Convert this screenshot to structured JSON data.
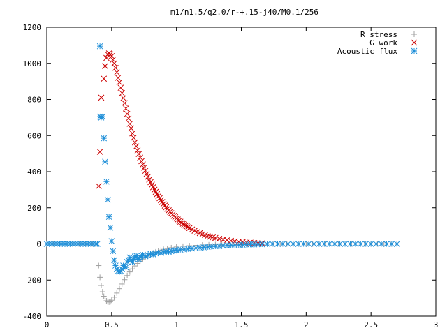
{
  "chart_data": {
    "type": "scatter",
    "title": "m1/n1.5/q2.0/r-+.15-j40/M0.1/256",
    "xlabel": "",
    "ylabel": "",
    "xlim": [
      0,
      3
    ],
    "ylim": [
      -400,
      1200
    ],
    "x_ticks": [
      "0",
      "0.5",
      "1",
      "1.5",
      "2",
      "2.5",
      "3"
    ],
    "y_ticks": [
      "-400",
      "-200",
      "0",
      "200",
      "400",
      "600",
      "800",
      "1000",
      "1200"
    ],
    "grid": false,
    "legend_position": "top-right",
    "series": [
      {
        "name": "R stress",
        "marker": "plus",
        "color": "#a0a0a0",
        "points": [
          [
            0.0,
            0
          ],
          [
            0.05,
            0
          ],
          [
            0.1,
            0
          ],
          [
            0.15,
            0
          ],
          [
            0.2,
            0
          ],
          [
            0.25,
            0
          ],
          [
            0.3,
            0
          ],
          [
            0.35,
            0
          ],
          [
            0.39,
            0
          ],
          [
            0.4,
            -120
          ],
          [
            0.41,
            -185
          ],
          [
            0.42,
            -230
          ],
          [
            0.43,
            -265
          ],
          [
            0.44,
            -290
          ],
          [
            0.45,
            -305
          ],
          [
            0.46,
            -315
          ],
          [
            0.47,
            -320
          ],
          [
            0.48,
            -322
          ],
          [
            0.49,
            -320
          ],
          [
            0.5,
            -312
          ],
          [
            0.52,
            -295
          ],
          [
            0.54,
            -272
          ],
          [
            0.56,
            -248
          ],
          [
            0.58,
            -222
          ],
          [
            0.6,
            -198
          ],
          [
            0.62,
            -175
          ],
          [
            0.64,
            -155
          ],
          [
            0.66,
            -138
          ],
          [
            0.68,
            -122
          ],
          [
            0.7,
            -108
          ],
          [
            0.72,
            -95
          ],
          [
            0.74,
            -84
          ],
          [
            0.76,
            -74
          ],
          [
            0.78,
            -65
          ],
          [
            0.8,
            -57
          ],
          [
            0.82,
            -50
          ],
          [
            0.84,
            -44
          ],
          [
            0.86,
            -39
          ],
          [
            0.88,
            -34
          ],
          [
            0.9,
            -30
          ],
          [
            0.93,
            -25
          ],
          [
            0.96,
            -21
          ],
          [
            1.0,
            -17
          ],
          [
            1.05,
            -13
          ],
          [
            1.1,
            -10
          ],
          [
            1.15,
            -8
          ],
          [
            1.2,
            -6
          ],
          [
            1.25,
            -5
          ],
          [
            1.3,
            -4
          ],
          [
            1.35,
            -3
          ],
          [
            1.4,
            -2
          ],
          [
            1.45,
            -2
          ],
          [
            1.5,
            -1
          ],
          [
            1.55,
            -1
          ],
          [
            1.6,
            -1
          ],
          [
            1.65,
            0
          ],
          [
            1.7,
            0
          ],
          [
            1.75,
            0
          ],
          [
            1.8,
            0
          ],
          [
            1.85,
            0
          ],
          [
            1.9,
            0
          ],
          [
            1.95,
            0
          ],
          [
            2.0,
            0
          ],
          [
            2.05,
            0
          ],
          [
            2.1,
            0
          ],
          [
            2.15,
            0
          ],
          [
            2.2,
            0
          ],
          [
            2.25,
            0
          ],
          [
            2.3,
            0
          ],
          [
            2.35,
            0
          ],
          [
            2.4,
            0
          ],
          [
            2.45,
            0
          ],
          [
            2.5,
            0
          ],
          [
            2.55,
            0
          ],
          [
            2.6,
            0
          ],
          [
            2.65,
            0
          ],
          [
            2.7,
            0
          ]
        ]
      },
      {
        "name": "G work",
        "marker": "cross",
        "color": "#cc0000",
        "points": [
          [
            0.4,
            320
          ],
          [
            0.41,
            510
          ],
          [
            0.42,
            810
          ],
          [
            0.44,
            915
          ],
          [
            0.45,
            985
          ],
          [
            0.46,
            1030
          ],
          [
            0.47,
            1050
          ],
          [
            0.48,
            1055
          ],
          [
            0.49,
            1050
          ],
          [
            0.5,
            1040
          ],
          [
            0.51,
            1020
          ],
          [
            0.52,
            1000
          ],
          [
            0.53,
            975
          ],
          [
            0.54,
            950
          ],
          [
            0.55,
            920
          ],
          [
            0.56,
            895
          ],
          [
            0.57,
            865
          ],
          [
            0.58,
            835
          ],
          [
            0.59,
            808
          ],
          [
            0.6,
            780
          ],
          [
            0.61,
            750
          ],
          [
            0.62,
            720
          ],
          [
            0.63,
            695
          ],
          [
            0.64,
            665
          ],
          [
            0.65,
            640
          ],
          [
            0.66,
            612
          ],
          [
            0.67,
            588
          ],
          [
            0.68,
            562
          ],
          [
            0.69,
            540
          ],
          [
            0.7,
            518
          ],
          [
            0.71,
            498
          ],
          [
            0.72,
            478
          ],
          [
            0.73,
            458
          ],
          [
            0.74,
            440
          ],
          [
            0.75,
            422
          ],
          [
            0.76,
            405
          ],
          [
            0.77,
            388
          ],
          [
            0.78,
            372
          ],
          [
            0.79,
            356
          ],
          [
            0.8,
            342
          ],
          [
            0.81,
            328
          ],
          [
            0.82,
            314
          ],
          [
            0.83,
            300
          ],
          [
            0.84,
            288
          ],
          [
            0.85,
            276
          ],
          [
            0.86,
            264
          ],
          [
            0.87,
            253
          ],
          [
            0.88,
            242
          ],
          [
            0.89,
            232
          ],
          [
            0.9,
            222
          ],
          [
            0.91,
            212
          ],
          [
            0.92,
            203
          ],
          [
            0.93,
            194
          ],
          [
            0.94,
            186
          ],
          [
            0.95,
            178
          ],
          [
            0.96,
            170
          ],
          [
            0.97,
            162
          ],
          [
            0.98,
            155
          ],
          [
            0.99,
            148
          ],
          [
            1.0,
            141
          ],
          [
            1.01,
            135
          ],
          [
            1.02,
            129
          ],
          [
            1.03,
            123
          ],
          [
            1.04,
            117
          ],
          [
            1.05,
            112
          ],
          [
            1.06,
            107
          ],
          [
            1.07,
            102
          ],
          [
            1.08,
            97
          ],
          [
            1.09,
            93
          ],
          [
            1.1,
            88
          ],
          [
            1.12,
            80
          ],
          [
            1.14,
            73
          ],
          [
            1.16,
            66
          ],
          [
            1.18,
            60
          ],
          [
            1.2,
            54
          ],
          [
            1.22,
            49
          ],
          [
            1.24,
            44
          ],
          [
            1.26,
            40
          ],
          [
            1.28,
            36
          ],
          [
            1.3,
            33
          ],
          [
            1.33,
            28
          ],
          [
            1.36,
            24
          ],
          [
            1.39,
            20
          ],
          [
            1.42,
            17
          ],
          [
            1.45,
            14
          ],
          [
            1.48,
            12
          ],
          [
            1.51,
            10
          ],
          [
            1.54,
            8
          ],
          [
            1.57,
            7
          ],
          [
            1.6,
            5
          ],
          [
            1.63,
            4
          ],
          [
            1.66,
            3
          ]
        ]
      },
      {
        "name": "Acoustic flux",
        "marker": "star",
        "color": "#1f8fd8",
        "points": [
          [
            0.0,
            0
          ],
          [
            0.02,
            0
          ],
          [
            0.04,
            0
          ],
          [
            0.06,
            0
          ],
          [
            0.08,
            0
          ],
          [
            0.1,
            0
          ],
          [
            0.12,
            0
          ],
          [
            0.14,
            0
          ],
          [
            0.16,
            0
          ],
          [
            0.18,
            0
          ],
          [
            0.2,
            0
          ],
          [
            0.22,
            0
          ],
          [
            0.24,
            0
          ],
          [
            0.26,
            0
          ],
          [
            0.28,
            0
          ],
          [
            0.3,
            0
          ],
          [
            0.32,
            0
          ],
          [
            0.34,
            0
          ],
          [
            0.36,
            0
          ],
          [
            0.38,
            0
          ],
          [
            0.39,
            0
          ],
          [
            0.41,
            1095
          ],
          [
            0.41,
            705
          ],
          [
            0.42,
            700
          ],
          [
            0.43,
            705
          ],
          [
            0.44,
            585
          ],
          [
            0.45,
            455
          ],
          [
            0.46,
            345
          ],
          [
            0.47,
            245
          ],
          [
            0.48,
            150
          ],
          [
            0.49,
            90
          ],
          [
            0.5,
            15
          ],
          [
            0.51,
            -40
          ],
          [
            0.52,
            -90
          ],
          [
            0.53,
            -120
          ],
          [
            0.54,
            -140
          ],
          [
            0.55,
            -150
          ],
          [
            0.56,
            -155
          ],
          [
            0.57,
            -150
          ],
          [
            0.58,
            -140
          ],
          [
            0.59,
            -120
          ],
          [
            0.6,
            -125
          ],
          [
            0.61,
            -130
          ],
          [
            0.62,
            -100
          ],
          [
            0.63,
            -90
          ],
          [
            0.64,
            -75
          ],
          [
            0.65,
            -90
          ],
          [
            0.66,
            -100
          ],
          [
            0.67,
            -85
          ],
          [
            0.68,
            -70
          ],
          [
            0.69,
            -65
          ],
          [
            0.7,
            -80
          ],
          [
            0.71,
            -85
          ],
          [
            0.72,
            -72
          ],
          [
            0.73,
            -65
          ],
          [
            0.74,
            -60
          ],
          [
            0.76,
            -68
          ],
          [
            0.78,
            -62
          ],
          [
            0.8,
            -55
          ],
          [
            0.82,
            -58
          ],
          [
            0.84,
            -52
          ],
          [
            0.86,
            -48
          ],
          [
            0.88,
            -50
          ],
          [
            0.9,
            -45
          ],
          [
            0.92,
            -42
          ],
          [
            0.94,
            -44
          ],
          [
            0.96,
            -40
          ],
          [
            0.98,
            -37
          ],
          [
            1.0,
            -35
          ],
          [
            1.03,
            -32
          ],
          [
            1.06,
            -30
          ],
          [
            1.09,
            -28
          ],
          [
            1.12,
            -25
          ],
          [
            1.15,
            -23
          ],
          [
            1.18,
            -21
          ],
          [
            1.21,
            -19
          ],
          [
            1.24,
            -17
          ],
          [
            1.27,
            -15
          ],
          [
            1.3,
            -13
          ],
          [
            1.33,
            -12
          ],
          [
            1.36,
            -10
          ],
          [
            1.39,
            -9
          ],
          [
            1.42,
            -8
          ],
          [
            1.45,
            -7
          ],
          [
            1.48,
            -6
          ],
          [
            1.51,
            -5
          ],
          [
            1.54,
            -4
          ],
          [
            1.57,
            -3
          ],
          [
            1.6,
            -3
          ],
          [
            1.63,
            -2
          ],
          [
            1.66,
            -2
          ],
          [
            1.7,
            -1
          ],
          [
            1.74,
            0
          ],
          [
            1.78,
            0
          ],
          [
            1.82,
            0
          ],
          [
            1.86,
            0
          ],
          [
            1.9,
            0
          ],
          [
            1.94,
            0
          ],
          [
            1.98,
            0
          ],
          [
            2.02,
            0
          ],
          [
            2.06,
            0
          ],
          [
            2.1,
            0
          ],
          [
            2.14,
            0
          ],
          [
            2.18,
            0
          ],
          [
            2.22,
            0
          ],
          [
            2.26,
            0
          ],
          [
            2.3,
            0
          ],
          [
            2.34,
            0
          ],
          [
            2.38,
            0
          ],
          [
            2.42,
            0
          ],
          [
            2.46,
            0
          ],
          [
            2.5,
            0
          ],
          [
            2.54,
            0
          ],
          [
            2.58,
            0
          ],
          [
            2.62,
            0
          ],
          [
            2.66,
            0
          ],
          [
            2.7,
            0
          ]
        ]
      }
    ]
  }
}
